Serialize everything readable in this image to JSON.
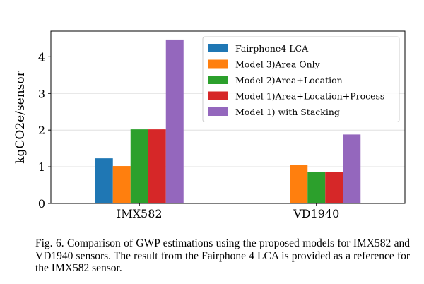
{
  "chart_data": {
    "type": "bar",
    "categories": [
      "IMX582",
      "VD1940"
    ],
    "series": [
      {
        "name": "Fairphone4 LCA",
        "color": "#1f77b4",
        "values": [
          1.23,
          null
        ]
      },
      {
        "name": "Model 3)Area Only",
        "color": "#ff7f0e",
        "values": [
          1.02,
          1.05
        ]
      },
      {
        "name": "Model 2)Area+Location",
        "color": "#2ca02c",
        "values": [
          2.02,
          0.85
        ]
      },
      {
        "name": "Model 1)Area+Location+Process",
        "color": "#d62728",
        "values": [
          2.02,
          0.85
        ]
      },
      {
        "name": "Model 1) with Stacking",
        "color": "#9467bd",
        "values": [
          4.47,
          1.88
        ]
      }
    ],
    "ylabel": "kgCO2e/sensor",
    "xlabel": "",
    "ylim": [
      0,
      4.7
    ],
    "yticks": [
      0,
      1,
      2,
      3,
      4
    ],
    "grid": true,
    "legend_position": "top-right"
  },
  "caption": "Fig. 6.  Comparison of GWP estimations using the proposed models for IMX582 and VD1940 sensors. The result from the Fairphone 4 LCA is provided as a reference for the IMX582 sensor."
}
